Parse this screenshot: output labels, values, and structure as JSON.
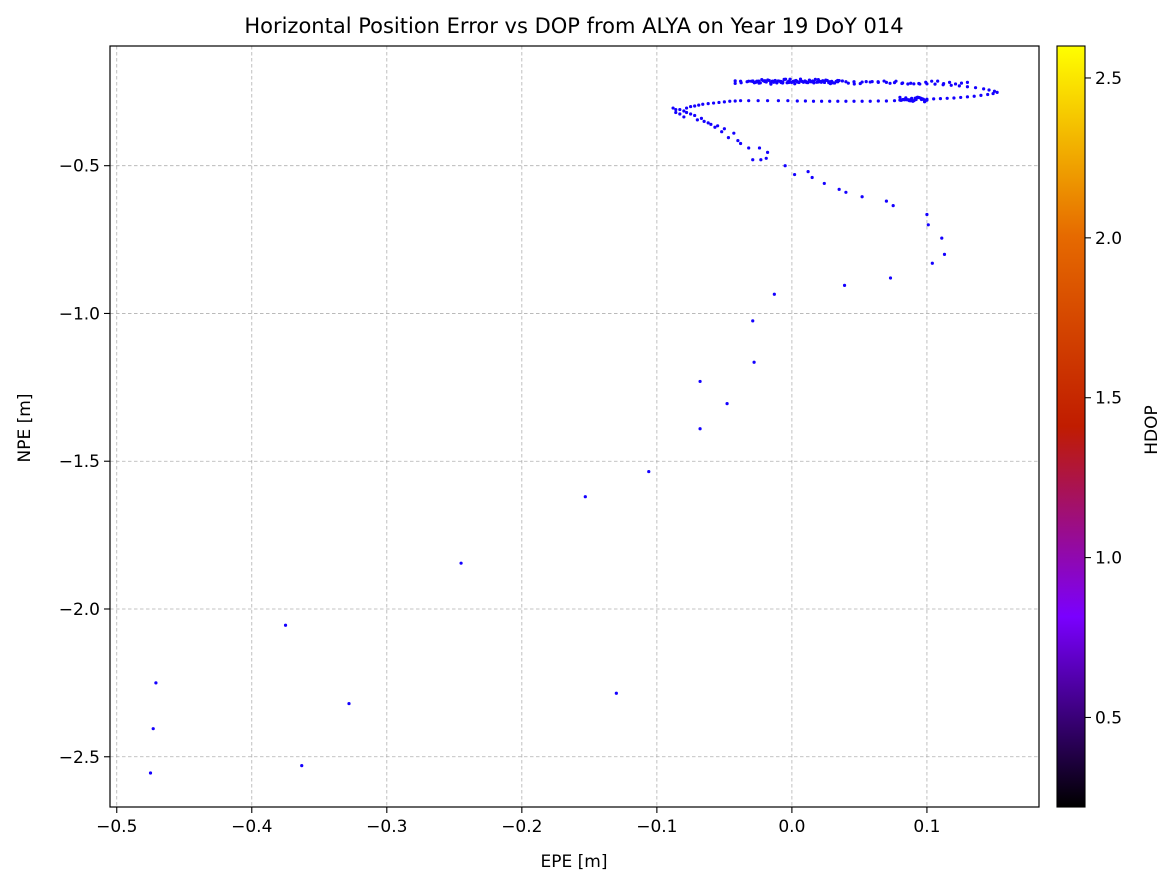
{
  "chart_data": {
    "type": "scatter",
    "title": "Horizontal Position Error vs DOP from ALYA on Year 19 DoY 014",
    "xlabel": "EPE [m]",
    "ylabel": "NPE [m]",
    "colorbar_label": "HDOP",
    "xlim": [
      -0.505,
      0.183
    ],
    "ylim": [
      -2.67,
      -0.095
    ],
    "clim": [
      0.22,
      2.6
    ],
    "xticks": [
      -0.5,
      -0.4,
      -0.3,
      -0.2,
      -0.1,
      0.0,
      0.1
    ],
    "xtick_labels": [
      "−0.5",
      "−0.4",
      "−0.3",
      "−0.2",
      "−0.1",
      "0.0",
      "0.1"
    ],
    "yticks": [
      -0.5,
      -1.0,
      -1.5,
      -2.0,
      -2.5
    ],
    "ytick_labels": [
      "−0.5",
      "−1.0",
      "−1.5",
      "−2.0",
      "−2.5"
    ],
    "cticks": [
      0.5,
      1.0,
      1.5,
      2.0,
      2.5
    ],
    "ctick_labels": [
      "0.5",
      "1.0",
      "1.5",
      "2.0",
      "2.5"
    ],
    "grid": true,
    "colormap": [
      "#000000",
      "#7a00ff",
      "#c01c00",
      "#e66a00",
      "#ffff00"
    ],
    "point_color": "#1400ff",
    "hdop_value": 0.68,
    "points": [
      [
        -0.475,
        -2.555
      ],
      [
        -0.473,
        -2.405
      ],
      [
        -0.471,
        -2.25
      ],
      [
        -0.375,
        -2.055
      ],
      [
        -0.363,
        -2.53
      ],
      [
        -0.328,
        -2.32
      ],
      [
        -0.245,
        -1.845
      ],
      [
        -0.153,
        -1.62
      ],
      [
        -0.13,
        -2.285
      ],
      [
        -0.106,
        -1.535
      ],
      [
        -0.068,
        -1.39
      ],
      [
        -0.068,
        -1.23
      ],
      [
        -0.048,
        -1.305
      ],
      [
        -0.028,
        -1.165
      ],
      [
        -0.029,
        -1.025
      ],
      [
        -0.013,
        -0.935
      ],
      [
        0.039,
        -0.905
      ],
      [
        0.073,
        -0.88
      ],
      [
        0.104,
        -0.83
      ],
      [
        0.113,
        -0.8
      ],
      [
        0.111,
        -0.745
      ],
      [
        0.101,
        -0.7
      ],
      [
        0.1,
        -0.665
      ],
      [
        0.075,
        -0.635
      ],
      [
        0.07,
        -0.62
      ],
      [
        0.052,
        -0.605
      ],
      [
        0.04,
        -0.59
      ],
      [
        0.035,
        -0.58
      ],
      [
        0.024,
        -0.56
      ],
      [
        0.015,
        -0.54
      ],
      [
        0.012,
        -0.52
      ],
      [
        0.002,
        -0.53
      ],
      [
        -0.005,
        -0.5
      ],
      [
        -0.018,
        -0.455
      ],
      [
        -0.019,
        -0.475
      ],
      [
        -0.023,
        -0.48
      ],
      [
        -0.024,
        -0.44
      ],
      [
        -0.029,
        -0.48
      ],
      [
        -0.032,
        -0.44
      ],
      [
        -0.038,
        -0.425
      ],
      [
        -0.04,
        -0.415
      ],
      [
        -0.043,
        -0.39
      ],
      [
        -0.047,
        -0.405
      ],
      [
        -0.05,
        -0.375
      ],
      [
        -0.052,
        -0.385
      ],
      [
        -0.055,
        -0.365
      ],
      [
        -0.057,
        -0.37
      ],
      [
        -0.06,
        -0.36
      ],
      [
        -0.062,
        -0.355
      ],
      [
        -0.065,
        -0.35
      ],
      [
        -0.067,
        -0.34
      ],
      [
        -0.07,
        -0.345
      ],
      [
        -0.072,
        -0.33
      ],
      [
        -0.075,
        -0.325
      ],
      [
        -0.078,
        -0.32
      ],
      [
        -0.08,
        -0.315
      ],
      [
        -0.083,
        -0.31
      ],
      [
        -0.086,
        -0.31
      ],
      [
        -0.088,
        -0.305
      ],
      [
        -0.086,
        -0.32
      ],
      [
        -0.083,
        -0.325
      ],
      [
        -0.08,
        -0.335
      ],
      [
        -0.078,
        -0.305
      ],
      [
        -0.075,
        -0.3
      ],
      [
        -0.072,
        -0.298
      ],
      [
        -0.069,
        -0.295
      ],
      [
        -0.066,
        -0.292
      ],
      [
        -0.062,
        -0.29
      ],
      [
        -0.058,
        -0.288
      ],
      [
        -0.054,
        -0.286
      ],
      [
        -0.05,
        -0.284
      ],
      [
        -0.046,
        -0.282
      ],
      [
        -0.042,
        -0.281
      ],
      [
        -0.038,
        -0.28
      ],
      [
        -0.032,
        -0.28
      ],
      [
        -0.025,
        -0.28
      ],
      [
        -0.018,
        -0.28
      ],
      [
        -0.01,
        -0.28
      ],
      [
        -0.003,
        -0.28
      ],
      [
        0.004,
        -0.281
      ],
      [
        0.01,
        -0.281
      ],
      [
        0.016,
        -0.282
      ],
      [
        0.022,
        -0.282
      ],
      [
        0.028,
        -0.282
      ],
      [
        0.034,
        -0.282
      ],
      [
        0.04,
        -0.282
      ],
      [
        0.046,
        -0.282
      ],
      [
        0.052,
        -0.282
      ],
      [
        0.058,
        -0.282
      ],
      [
        0.064,
        -0.281
      ],
      [
        0.07,
        -0.281
      ],
      [
        0.076,
        -0.28
      ],
      [
        0.08,
        -0.278
      ],
      [
        0.084,
        -0.276
      ],
      [
        0.088,
        -0.276
      ],
      [
        0.092,
        -0.276
      ],
      [
        0.096,
        -0.276
      ],
      [
        0.1,
        -0.275
      ],
      [
        0.105,
        -0.274
      ],
      [
        0.11,
        -0.273
      ],
      [
        0.115,
        -0.272
      ],
      [
        0.12,
        -0.271
      ],
      [
        0.125,
        -0.269
      ],
      [
        0.13,
        -0.267
      ],
      [
        0.135,
        -0.265
      ],
      [
        0.14,
        -0.262
      ],
      [
        0.145,
        -0.259
      ],
      [
        0.149,
        -0.256
      ],
      [
        0.152,
        -0.252
      ],
      [
        0.15,
        -0.248
      ],
      [
        0.146,
        -0.244
      ],
      [
        0.142,
        -0.24
      ],
      [
        0.136,
        -0.236
      ],
      [
        0.13,
        -0.233
      ],
      [
        0.124,
        -0.23
      ],
      [
        0.118,
        -0.228
      ],
      [
        0.112,
        -0.226
      ],
      [
        0.106,
        -0.224
      ],
      [
        0.1,
        -0.223
      ],
      [
        0.094,
        -0.222
      ],
      [
        0.088,
        -0.221
      ],
      [
        0.082,
        -0.22
      ],
      [
        0.076,
        -0.219
      ],
      [
        0.07,
        -0.218
      ],
      [
        0.064,
        -0.218
      ],
      [
        0.058,
        -0.217
      ],
      [
        0.052,
        -0.217
      ],
      [
        0.046,
        -0.216
      ],
      [
        0.04,
        -0.216
      ],
      [
        0.034,
        -0.216
      ],
      [
        0.028,
        -0.216
      ],
      [
        0.022,
        -0.215
      ],
      [
        0.016,
        -0.215
      ],
      [
        0.01,
        -0.215
      ],
      [
        0.004,
        -0.215
      ],
      [
        -0.002,
        -0.215
      ],
      [
        -0.008,
        -0.215
      ],
      [
        -0.014,
        -0.214
      ],
      [
        -0.02,
        -0.214
      ],
      [
        -0.026,
        -0.214
      ],
      [
        -0.032,
        -0.214
      ],
      [
        -0.038,
        -0.214
      ],
      [
        -0.042,
        -0.213
      ]
    ],
    "dense_clusters": [
      {
        "x_from": -0.03,
        "x_to": 0.035,
        "y": -0.214,
        "count": 60,
        "jitter_y": 0.007
      },
      {
        "x_from": 0.08,
        "x_to": 0.1,
        "y": -0.276,
        "count": 24,
        "jitter_y": 0.008
      },
      {
        "x_from": -0.042,
        "x_to": 0.13,
        "y": -0.218,
        "count": 40,
        "jitter_y": 0.006
      }
    ]
  }
}
